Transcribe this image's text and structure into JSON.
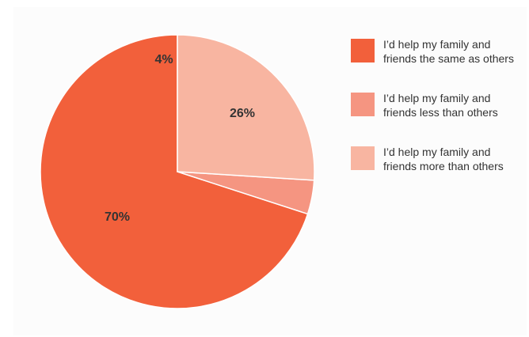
{
  "chart_data": {
    "type": "pie",
    "values": [
      70,
      4,
      26
    ],
    "slices": [
      {
        "label": "I’d help my family and friends the same as others",
        "value": 70,
        "value_label": "70%",
        "color": "#f2603b"
      },
      {
        "label": "I’d help my family and friends less than others",
        "value": 4,
        "value_label": "4%",
        "color": "#f59581"
      },
      {
        "label": "I’d help my family and friends more than others",
        "value": 26,
        "value_label": "26%",
        "color": "#f8b5a1"
      }
    ],
    "start_angle_deg": 0,
    "direction": "counterclockwise",
    "legend_position": "right"
  }
}
